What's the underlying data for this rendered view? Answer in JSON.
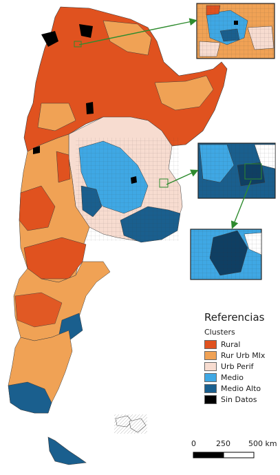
{
  "legend": {
    "title": "Referencias",
    "subtitle": "Clusters",
    "items": [
      {
        "label": "Rural",
        "color": "#e0521f"
      },
      {
        "label": "Rur Urb MIx",
        "color": "#f0a255"
      },
      {
        "label": "Urb Perif",
        "color": "#f7dcd0"
      },
      {
        "label": "Medio",
        "color": "#3fa8e4"
      },
      {
        "label": "Medio Alto",
        "color": "#1a5f8e"
      },
      {
        "label": "Sin Datos",
        "color": "#000000"
      }
    ]
  },
  "scale_bar": {
    "labels": [
      "0",
      "250",
      "500 km"
    ]
  },
  "colors": {
    "boundary": "#3a3a3a",
    "inset_border": "#222222",
    "arrow": "#2e8b2e"
  }
}
